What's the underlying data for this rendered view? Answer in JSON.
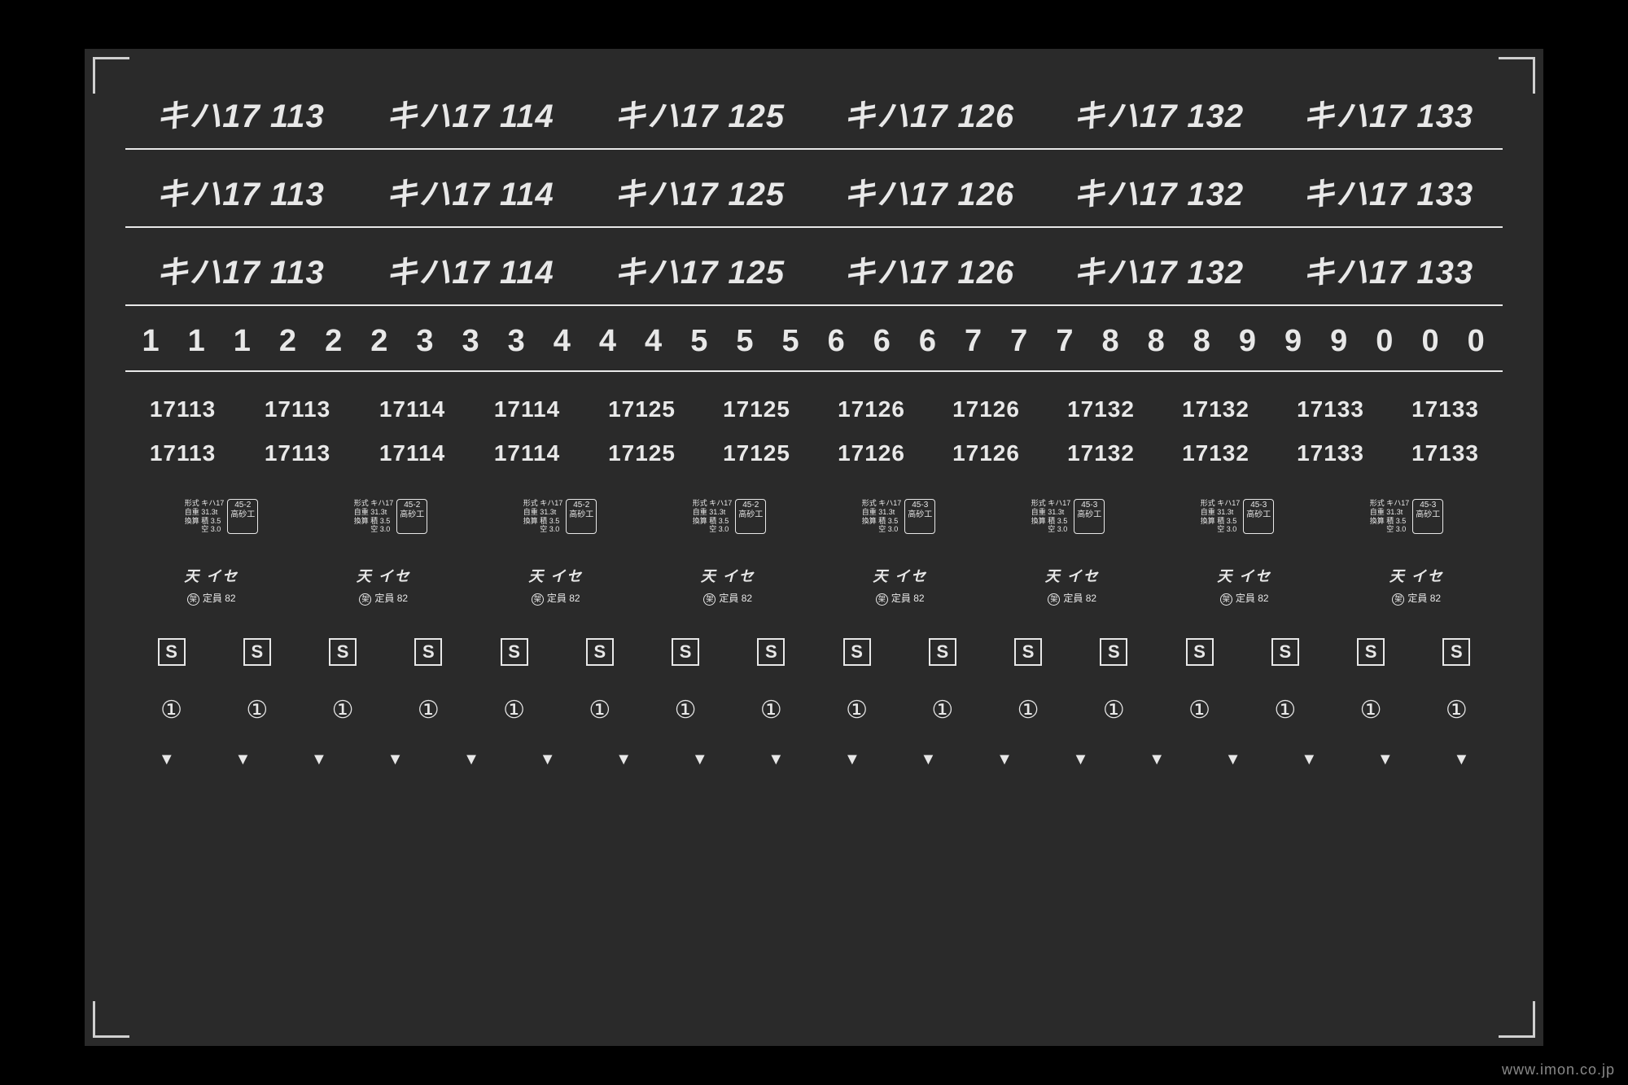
{
  "sheet_bg": "#2a2a2a",
  "text_color": "#e8e8e8",
  "car_numbers": [
    "キハ17 113",
    "キハ17 114",
    "キハ17 125",
    "キハ17 126",
    "キハ17 132",
    "キハ17 133"
  ],
  "digits": [
    "1",
    "1",
    "1",
    "2",
    "2",
    "2",
    "3",
    "3",
    "3",
    "4",
    "4",
    "4",
    "5",
    "5",
    "5",
    "6",
    "6",
    "6",
    "7",
    "7",
    "7",
    "8",
    "8",
    "8",
    "9",
    "9",
    "9",
    "0",
    "0",
    "0"
  ],
  "small_numbers": [
    "17113",
    "17113",
    "17114",
    "17114",
    "17125",
    "17125",
    "17126",
    "17126",
    "17132",
    "17132",
    "17133",
    "17133"
  ],
  "plates": {
    "text_lines": "形式 キハ17\n自重 31.3t\n換算 積 3.5\n　　 空 3.0",
    "box_a": "45-2\n高砂工",
    "box_b": "45-3\n高砂工",
    "count": 8,
    "switch_at": 4
  },
  "depot": {
    "top": "天 イセ",
    "bot_symbol": "架",
    "bot_text": "定員 82",
    "count": 8
  },
  "s_box": {
    "label": "S",
    "count": 16
  },
  "circles": {
    "glyph": "①",
    "count": 16
  },
  "triangles": {
    "glyph": "▼",
    "count": 18
  },
  "watermark": "www.imon.co.jp"
}
